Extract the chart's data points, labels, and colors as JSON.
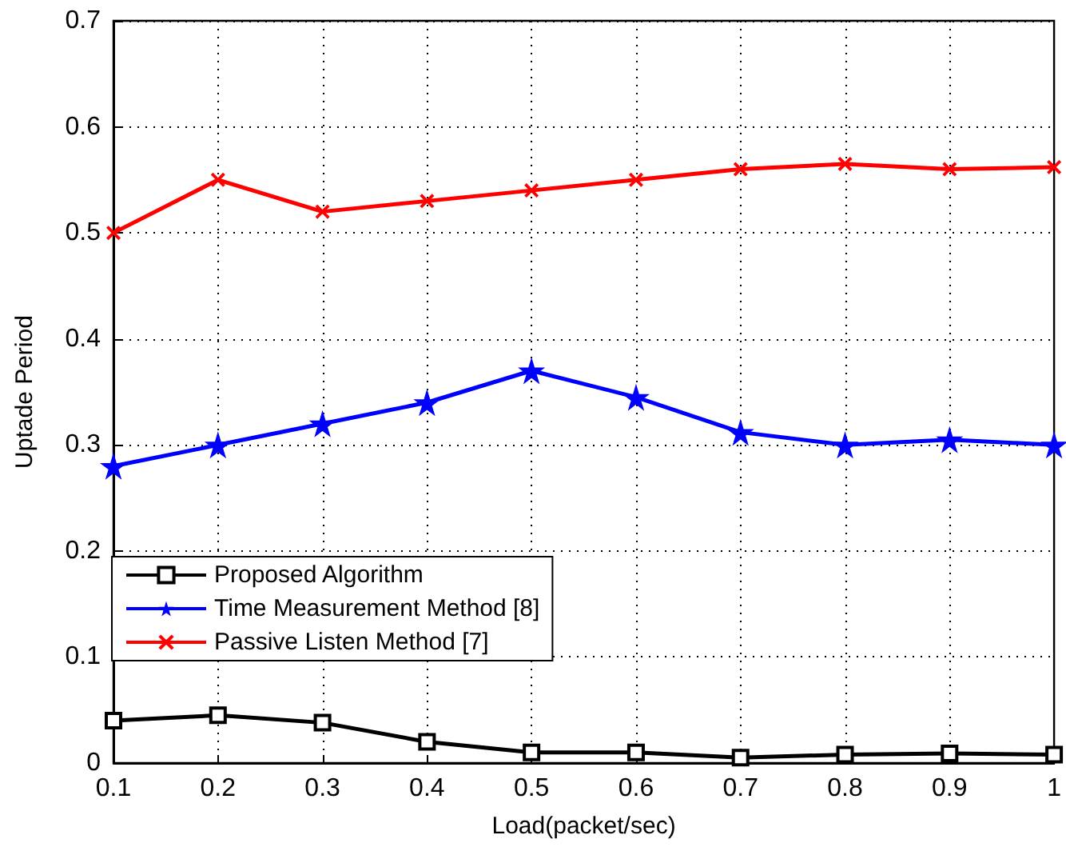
{
  "chart_data": {
    "type": "line",
    "xlabel": "Load(packet/sec)",
    "ylabel": "Uptade Period",
    "x": [
      0.1,
      0.2,
      0.3,
      0.4,
      0.5,
      0.6,
      0.7,
      0.8,
      0.9,
      1
    ],
    "series": [
      {
        "name": "Proposed Algorithm",
        "color": "#000000",
        "marker": "square",
        "values": [
          0.04,
          0.045,
          0.038,
          0.02,
          0.01,
          0.01,
          0.005,
          0.008,
          0.009,
          0.008
        ]
      },
      {
        "name": "Time Measurement Method [8]",
        "color": "#0000ff",
        "marker": "star",
        "values": [
          0.28,
          0.3,
          0.32,
          0.34,
          0.37,
          0.345,
          0.312,
          0.3,
          0.305,
          0.3
        ]
      },
      {
        "name": "Passive Listen Method [7]",
        "color": "#ff0000",
        "marker": "cross",
        "values": [
          0.5,
          0.55,
          0.52,
          0.53,
          0.54,
          0.55,
          0.56,
          0.565,
          0.56,
          0.562
        ]
      }
    ],
    "xlim": [
      0.1,
      1
    ],
    "xticks": [
      0.1,
      0.2,
      0.3,
      0.4,
      0.5,
      0.6,
      0.7,
      0.8,
      0.9,
      1
    ],
    "ylim": [
      0,
      0.7
    ],
    "yticks": [
      0,
      0.1,
      0.2,
      0.3,
      0.4,
      0.5,
      0.6,
      0.7
    ],
    "grid": true,
    "legend": "left",
    "line_style": "solid"
  }
}
